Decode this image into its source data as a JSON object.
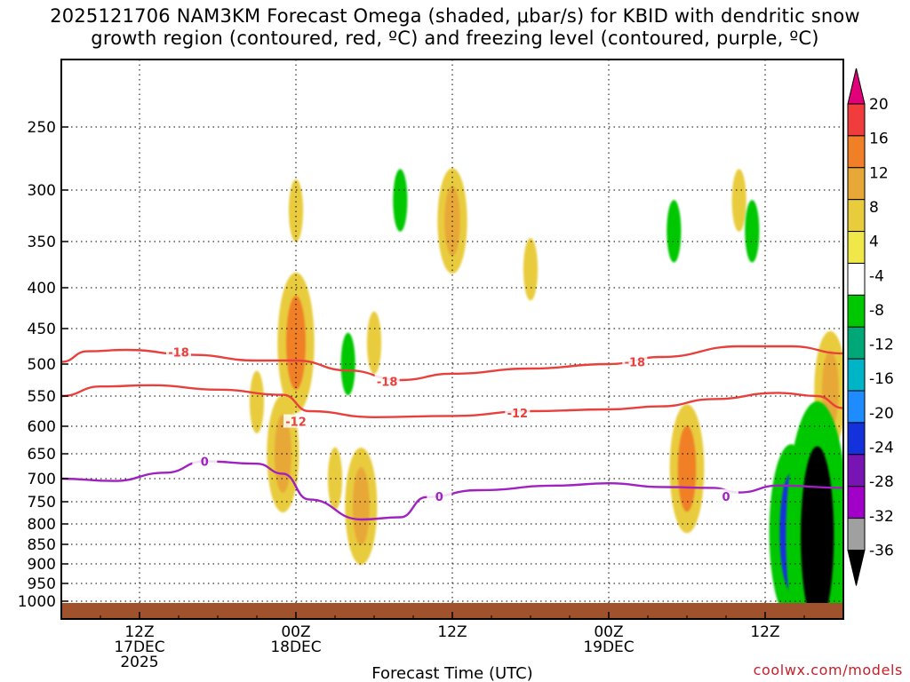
{
  "title": {
    "line1": "2025121706 NAM3KM Forecast Omega (shaded, μbar/s) for KBID with dendritic snow",
    "line2": "growth region (contoured, red, ºC) and freezing level (contoured, purple, ºC)"
  },
  "credit": "coolwx.com/models",
  "chart_data": {
    "type": "heatmap",
    "xlabel": "Forecast Time (UTC)",
    "ylabel": "",
    "x_ticks": [
      {
        "hour": 6,
        "lines": [
          "12Z",
          "17DEC",
          "2025"
        ]
      },
      {
        "hour": 18,
        "lines": [
          "00Z",
          "18DEC"
        ]
      },
      {
        "hour": 30,
        "lines": [
          "12Z"
        ]
      },
      {
        "hour": 42,
        "lines": [
          "00Z",
          "19DEC"
        ]
      },
      {
        "hour": 54,
        "lines": [
          "12Z"
        ]
      }
    ],
    "xlim_hours": [
      0,
      60
    ],
    "y_ticks": [
      250,
      300,
      350,
      400,
      450,
      500,
      550,
      600,
      650,
      700,
      750,
      800,
      850,
      900,
      950,
      1000
    ],
    "ylim_hpa": [
      200,
      1020
    ],
    "grid": "dotted",
    "colorbar": {
      "labels": [
        "20",
        "16",
        "12",
        "8",
        "4",
        "-4",
        "-8",
        "-12",
        "-16",
        "-20",
        "-24",
        "-28",
        "-32",
        "-36"
      ],
      "colors": [
        "#e0007a",
        "#f03c3c",
        "#f07f28",
        "#e8a838",
        "#e8cc3c",
        "#f0e848",
        "#ffffff",
        "#00c800",
        "#00a878",
        "#00b4c8",
        "#1e8cff",
        "#1432dc",
        "#7814b4",
        "#a000c8",
        "#a0a0a0",
        "#000000"
      ]
    },
    "contours": [
      {
        "name": "dgz_minus18",
        "color": "#e8403c",
        "label": "-18",
        "points": [
          [
            0,
            497
          ],
          [
            2,
            482
          ],
          [
            5,
            480
          ],
          [
            10,
            487
          ],
          [
            15,
            495
          ],
          [
            18,
            495
          ],
          [
            22,
            510
          ],
          [
            26,
            525
          ],
          [
            30,
            515
          ],
          [
            36,
            507
          ],
          [
            42,
            500
          ],
          [
            46,
            490
          ],
          [
            52,
            475
          ],
          [
            56,
            475
          ],
          [
            60,
            485
          ]
        ],
        "label_at": [
          [
            9,
            483
          ],
          [
            25,
            527
          ],
          [
            44,
            497
          ]
        ]
      },
      {
        "name": "dgz_minus12",
        "color": "#e8403c",
        "label": "-12",
        "points": [
          [
            0,
            550
          ],
          [
            3,
            535
          ],
          [
            7,
            533
          ],
          [
            12,
            540
          ],
          [
            17,
            548
          ],
          [
            19,
            575
          ],
          [
            24,
            585
          ],
          [
            30,
            583
          ],
          [
            36,
            575
          ],
          [
            42,
            572
          ],
          [
            46,
            567
          ],
          [
            50,
            555
          ],
          [
            55,
            545
          ],
          [
            58,
            550
          ],
          [
            60,
            570
          ]
        ],
        "label_at": [
          [
            18,
            592
          ],
          [
            35,
            578
          ]
        ]
      },
      {
        "name": "freezing_level",
        "color": "#a020c0",
        "label": "0",
        "points": [
          [
            0,
            700
          ],
          [
            4,
            705
          ],
          [
            8,
            688
          ],
          [
            11,
            665
          ],
          [
            15,
            670
          ],
          [
            17,
            690
          ],
          [
            19,
            745
          ],
          [
            23,
            790
          ],
          [
            26,
            785
          ],
          [
            28,
            740
          ],
          [
            32,
            725
          ],
          [
            38,
            715
          ],
          [
            42,
            710
          ],
          [
            46,
            718
          ],
          [
            50,
            720
          ],
          [
            52,
            730
          ],
          [
            55,
            715
          ],
          [
            60,
            720
          ]
        ],
        "label_at": [
          [
            11,
            665
          ],
          [
            29,
            738
          ],
          [
            51,
            738
          ]
        ]
      }
    ],
    "omega_cells": [
      {
        "hour": 18,
        "p": 320,
        "value": 6
      },
      {
        "hour": 18,
        "p": 470,
        "value": 14
      },
      {
        "hour": 15,
        "p": 560,
        "value": 6
      },
      {
        "hour": 17,
        "p": 650,
        "value": 10
      },
      {
        "hour": 21,
        "p": 700,
        "value": 6
      },
      {
        "hour": 23,
        "p": 760,
        "value": 10
      },
      {
        "hour": 24,
        "p": 470,
        "value": 6
      },
      {
        "hour": 30,
        "p": 330,
        "value": 8
      },
      {
        "hour": 36,
        "p": 380,
        "value": 6
      },
      {
        "hour": 48,
        "p": 680,
        "value": 12
      },
      {
        "hour": 52,
        "p": 310,
        "value": 6
      },
      {
        "hour": 59,
        "p": 540,
        "value": 10
      },
      {
        "hour": 26,
        "p": 310,
        "value": -6
      },
      {
        "hour": 22,
        "p": 500,
        "value": -6
      },
      {
        "hour": 47,
        "p": 340,
        "value": -6
      },
      {
        "hour": 53,
        "p": 340,
        "value": -6
      },
      {
        "hour": 56,
        "p": 820,
        "value": -20
      },
      {
        "hour": 58,
        "p": 830,
        "value": -36
      }
    ]
  }
}
